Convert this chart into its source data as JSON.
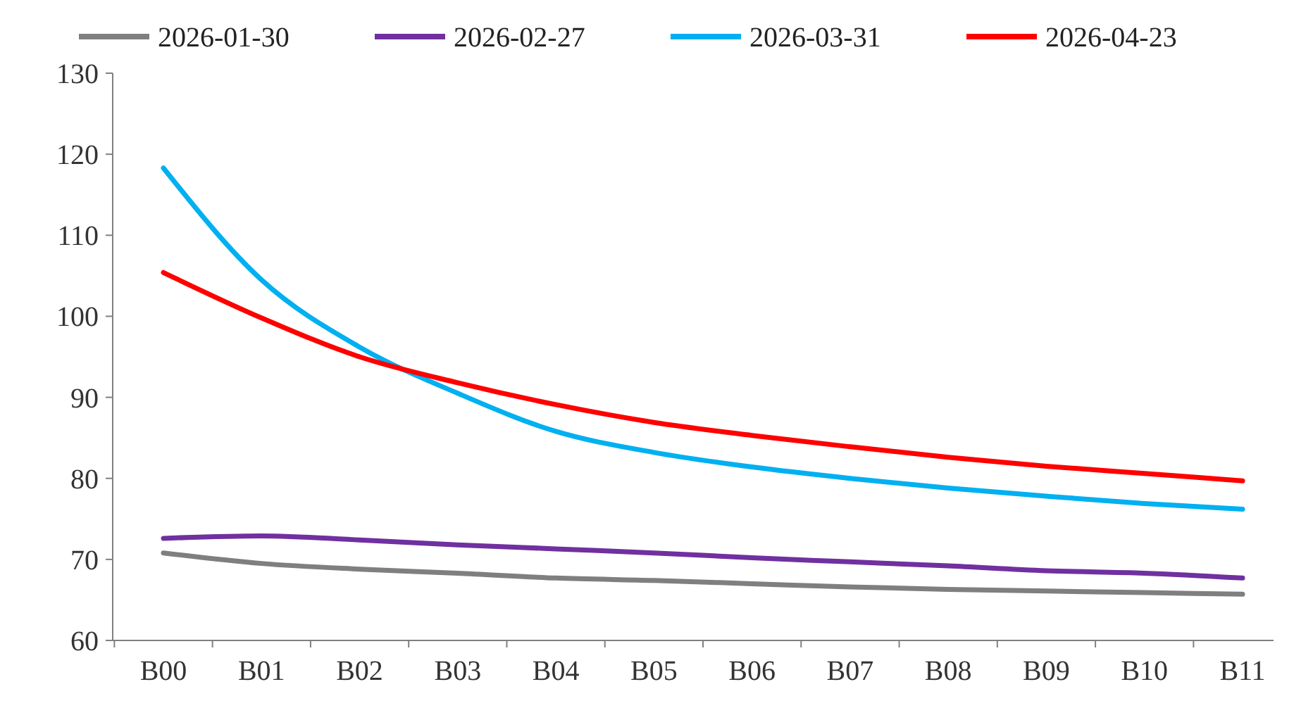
{
  "chart_data": {
    "type": "line",
    "categories": [
      "B00",
      "B01",
      "B02",
      "B03",
      "B04",
      "B05",
      "B06",
      "B07",
      "B08",
      "B09",
      "B10",
      "B11"
    ],
    "ylim": [
      60,
      130
    ],
    "yticks": [
      60,
      70,
      80,
      90,
      100,
      110,
      120,
      130
    ],
    "grid": false,
    "legend": "top",
    "marker": "none",
    "line_style": "solid",
    "series": [
      {
        "name": "2026-01-30",
        "color": "#7f7f7f",
        "values": [
          70.8,
          69.5,
          68.8,
          68.3,
          67.7,
          67.4,
          67.0,
          66.6,
          66.3,
          66.1,
          65.9,
          65.7
        ]
      },
      {
        "name": "2026-02-27",
        "color": "#7030a0",
        "values": [
          72.6,
          72.9,
          72.4,
          71.8,
          71.3,
          70.8,
          70.2,
          69.7,
          69.2,
          68.6,
          68.3,
          67.7
        ]
      },
      {
        "name": "2026-03-31",
        "color": "#00b0f0",
        "values": [
          118.3,
          104.5,
          96.2,
          90.5,
          85.8,
          83.2,
          81.4,
          80.0,
          78.8,
          77.8,
          76.9,
          76.2
        ]
      },
      {
        "name": "2026-04-23",
        "color": "#ff0000",
        "values": [
          105.4,
          99.8,
          95.0,
          91.8,
          89.1,
          86.9,
          85.3,
          83.9,
          82.6,
          81.5,
          80.6,
          79.7
        ]
      }
    ]
  }
}
